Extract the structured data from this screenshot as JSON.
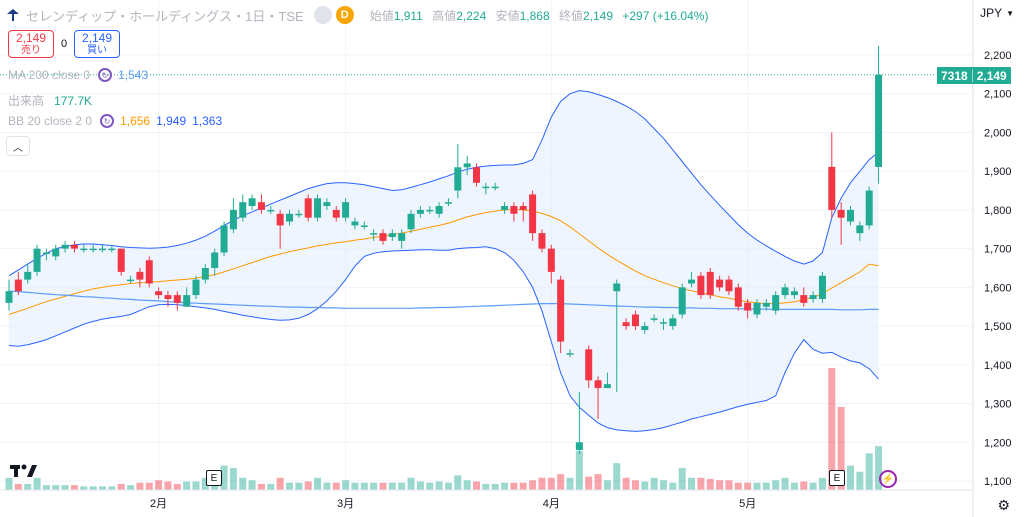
{
  "header": {
    "title": "セレンディップ・ホールディングス・1日・TSE",
    "badge": "D",
    "ohlc": [
      {
        "label": "始値",
        "value": "1,911"
      },
      {
        "label": "高値",
        "value": "2,224"
      },
      {
        "label": "安値",
        "value": "1,868"
      },
      {
        "label": "終値",
        "value": "2,149"
      }
    ],
    "change": "+297 (+16.04%)"
  },
  "trade": {
    "sell_price": "2,149",
    "sell_label": "売り",
    "spread": "0",
    "buy_price": "2,149",
    "buy_label": "買い"
  },
  "indicators": {
    "ma": {
      "label": "MA 200 close 0",
      "value": "1,543"
    },
    "volume": {
      "label": "出来高",
      "value": "177.7K"
    },
    "bb": {
      "label": "BB 20 close 2 0",
      "basis": "1,656",
      "upper": "1,949",
      "lower": "1,363"
    }
  },
  "currency": "JPY",
  "price_tag": {
    "code": "7318",
    "price": "2,149"
  },
  "earnings_marker": "E",
  "colors": {
    "up": "#22ab94",
    "down": "#f23645",
    "ma": "#5b9cf6",
    "bb_basis": "#ff9800",
    "bb_band": "#2962ff",
    "bb_fill": "#e3effd"
  },
  "chart_data": {
    "type": "candlestick",
    "y_axis_ticks": [
      1100,
      1200,
      1300,
      1400,
      1500,
      1600,
      1700,
      1800,
      1900,
      2000,
      2100,
      2200
    ],
    "y_axis_labels": [
      "1,100",
      "1,200",
      "1,300",
      "1,400",
      "1,500",
      "1,600",
      "1,700",
      "1,800",
      "1,900",
      "2,000",
      "2,100",
      "2,200"
    ],
    "ylim": [
      1080,
      2260
    ],
    "x_axis_labels": [
      "2月",
      "3月",
      "4月",
      "5月"
    ],
    "x_axis_label_index": [
      16,
      36,
      58,
      79
    ],
    "candles": [
      [
        1560,
        1590,
        1540,
        1620
      ],
      [
        1620,
        1590,
        1580,
        1640
      ],
      [
        1620,
        1640,
        1610,
        1660
      ],
      [
        1640,
        1700,
        1630,
        1710
      ],
      [
        1690,
        1690,
        1670,
        1700
      ],
      [
        1680,
        1700,
        1670,
        1710
      ],
      [
        1700,
        1710,
        1690,
        1720
      ],
      [
        1710,
        1700,
        1690,
        1720
      ],
      [
        1700,
        1700,
        1690,
        1710
      ],
      [
        1700,
        1700,
        1690,
        1710
      ],
      [
        1700,
        1700,
        1690,
        1710
      ],
      [
        1700,
        1700,
        1690,
        1710
      ],
      [
        1700,
        1640,
        1630,
        1700
      ],
      [
        1620,
        1620,
        1610,
        1630
      ],
      [
        1640,
        1620,
        1600,
        1650
      ],
      [
        1670,
        1610,
        1600,
        1680
      ],
      [
        1590,
        1580,
        1570,
        1600
      ],
      [
        1580,
        1570,
        1550,
        1590
      ],
      [
        1580,
        1560,
        1540,
        1590
      ],
      [
        1550,
        1580,
        1550,
        1600
      ],
      [
        1580,
        1620,
        1570,
        1630
      ],
      [
        1620,
        1650,
        1610,
        1660
      ],
      [
        1650,
        1690,
        1630,
        1700
      ],
      [
        1690,
        1760,
        1680,
        1770
      ],
      [
        1750,
        1800,
        1740,
        1830
      ],
      [
        1780,
        1820,
        1770,
        1840
      ],
      [
        1810,
        1830,
        1800,
        1840
      ],
      [
        1820,
        1800,
        1790,
        1840
      ],
      [
        1800,
        1800,
        1790,
        1810
      ],
      [
        1790,
        1760,
        1700,
        1800
      ],
      [
        1770,
        1790,
        1760,
        1800
      ],
      [
        1790,
        1790,
        1780,
        1800
      ],
      [
        1830,
        1780,
        1770,
        1840
      ],
      [
        1780,
        1830,
        1770,
        1840
      ],
      [
        1810,
        1820,
        1800,
        1830
      ],
      [
        1800,
        1780,
        1770,
        1810
      ],
      [
        1780,
        1820,
        1770,
        1830
      ],
      [
        1760,
        1770,
        1750,
        1780
      ],
      [
        1760,
        1760,
        1750,
        1770
      ],
      [
        1740,
        1740,
        1720,
        1750
      ],
      [
        1740,
        1720,
        1710,
        1750
      ],
      [
        1730,
        1740,
        1720,
        1750
      ],
      [
        1720,
        1740,
        1700,
        1750
      ],
      [
        1750,
        1790,
        1740,
        1800
      ],
      [
        1790,
        1800,
        1780,
        1810
      ],
      [
        1800,
        1800,
        1790,
        1810
      ],
      [
        1790,
        1810,
        1780,
        1820
      ],
      [
        1820,
        1820,
        1810,
        1830
      ],
      [
        1850,
        1910,
        1830,
        1970
      ],
      [
        1910,
        1920,
        1890,
        1940
      ],
      [
        1910,
        1870,
        1860,
        1920
      ],
      [
        1860,
        1860,
        1840,
        1870
      ],
      [
        1860,
        1860,
        1850,
        1870
      ],
      [
        1800,
        1810,
        1790,
        1820
      ],
      [
        1810,
        1790,
        1770,
        1820
      ],
      [
        1810,
        1800,
        1770,
        1820
      ],
      [
        1840,
        1740,
        1720,
        1850
      ],
      [
        1740,
        1700,
        1690,
        1750
      ],
      [
        1700,
        1640,
        1610,
        1710
      ],
      [
        1620,
        1460,
        1430,
        1630
      ],
      [
        1430,
        1430,
        1420,
        1440
      ],
      [
        1180,
        1200,
        1170,
        1330
      ],
      [
        1440,
        1360,
        1340,
        1450
      ],
      [
        1360,
        1340,
        1260,
        1370
      ],
      [
        1340,
        1350,
        1340,
        1380
      ],
      [
        1590,
        1610,
        1330,
        1620
      ],
      [
        1510,
        1500,
        1490,
        1520
      ],
      [
        1530,
        1500,
        1490,
        1540
      ],
      [
        1490,
        1500,
        1480,
        1510
      ],
      [
        1520,
        1520,
        1510,
        1530
      ],
      [
        1510,
        1510,
        1490,
        1520
      ],
      [
        1500,
        1520,
        1490,
        1530
      ],
      [
        1530,
        1600,
        1520,
        1610
      ],
      [
        1610,
        1620,
        1600,
        1640
      ],
      [
        1630,
        1580,
        1570,
        1640
      ],
      [
        1640,
        1580,
        1570,
        1650
      ],
      [
        1620,
        1600,
        1590,
        1630
      ],
      [
        1620,
        1590,
        1580,
        1630
      ],
      [
        1600,
        1550,
        1540,
        1610
      ],
      [
        1560,
        1540,
        1520,
        1570
      ],
      [
        1530,
        1560,
        1520,
        1570
      ],
      [
        1550,
        1560,
        1540,
        1570
      ],
      [
        1540,
        1580,
        1530,
        1590
      ],
      [
        1580,
        1600,
        1570,
        1610
      ],
      [
        1580,
        1590,
        1570,
        1600
      ],
      [
        1580,
        1560,
        1550,
        1600
      ],
      [
        1570,
        1580,
        1560,
        1590
      ],
      [
        1570,
        1630,
        1560,
        1640
      ],
      [
        1911,
        1800,
        1780,
        2000
      ],
      [
        1800,
        1780,
        1710,
        1820
      ],
      [
        1770,
        1800,
        1760,
        1810
      ],
      [
        1740,
        1760,
        1720,
        1770
      ],
      [
        1760,
        1850,
        1750,
        1860
      ],
      [
        1911,
        2149,
        1868,
        2224
      ]
    ],
    "volume_ratio": [
      0.1,
      0.05,
      0.05,
      0.1,
      0.04,
      0.04,
      0.04,
      0.04,
      0.03,
      0.03,
      0.03,
      0.03,
      0.05,
      0.04,
      0.06,
      0.06,
      0.08,
      0.07,
      0.05,
      0.07,
      0.07,
      0.1,
      0.1,
      0.2,
      0.18,
      0.1,
      0.08,
      0.05,
      0.05,
      0.1,
      0.06,
      0.06,
      0.07,
      0.1,
      0.06,
      0.06,
      0.08,
      0.06,
      0.06,
      0.06,
      0.06,
      0.06,
      0.06,
      0.1,
      0.07,
      0.06,
      0.07,
      0.06,
      0.12,
      0.08,
      0.07,
      0.05,
      0.05,
      0.06,
      0.06,
      0.06,
      0.08,
      0.1,
      0.1,
      0.13,
      0.1,
      0.32,
      0.11,
      0.13,
      0.08,
      0.22,
      0.1,
      0.08,
      0.07,
      0.1,
      0.08,
      0.06,
      0.18,
      0.1,
      0.1,
      0.09,
      0.08,
      0.08,
      0.06,
      0.06,
      0.06,
      0.06,
      0.08,
      0.1,
      0.06,
      0.07,
      0.06,
      0.1,
      1.0,
      0.68,
      0.2,
      0.15,
      0.3,
      0.36
    ],
    "ma200": [
      1590,
      1589,
      1587,
      1585,
      1583,
      1581,
      1580,
      1578,
      1576,
      1575,
      1573,
      1572,
      1570,
      1569,
      1567,
      1566,
      1565,
      1563,
      1562,
      1560,
      1559,
      1558,
      1557,
      1556,
      1555,
      1554,
      1553,
      1552,
      1551,
      1550,
      1549,
      1549,
      1548,
      1548,
      1547,
      1547,
      1546,
      1546,
      1546,
      1546,
      1546,
      1546,
      1546,
      1546,
      1547,
      1547,
      1548,
      1548,
      1549,
      1550,
      1551,
      1552,
      1553,
      1554,
      1555,
      1556,
      1557,
      1558,
      1558,
      1558,
      1557,
      1556,
      1555,
      1554,
      1553,
      1552,
      1551,
      1550,
      1549,
      1549,
      1548,
      1548,
      1547,
      1547,
      1546,
      1546,
      1545,
      1545,
      1545,
      1544,
      1544,
      1544,
      1543,
      1543,
      1543,
      1543,
      1543,
      1543,
      1543,
      1542,
      1542,
      1542,
      1543,
      1543
    ],
    "bb_basis": [
      1530,
      1538,
      1546,
      1555,
      1563,
      1570,
      1577,
      1584,
      1590,
      1596,
      1600,
      1604,
      1607,
      1610,
      1612,
      1613,
      1615,
      1617,
      1619,
      1621,
      1624,
      1628,
      1633,
      1640,
      1648,
      1656,
      1664,
      1672,
      1680,
      1686,
      1692,
      1697,
      1702,
      1707,
      1711,
      1715,
      1718,
      1722,
      1725,
      1729,
      1732,
      1736,
      1740,
      1745,
      1750,
      1755,
      1760,
      1766,
      1774,
      1782,
      1788,
      1793,
      1797,
      1800,
      1801,
      1800,
      1797,
      1791,
      1783,
      1772,
      1756,
      1738,
      1720,
      1702,
      1685,
      1670,
      1656,
      1642,
      1630,
      1621,
      1612,
      1604,
      1597,
      1591,
      1586,
      1581,
      1576,
      1572,
      1567,
      1563,
      1560,
      1558,
      1558,
      1560,
      1563,
      1568,
      1574,
      1584,
      1598,
      1612,
      1626,
      1640,
      1660,
      1656
    ],
    "bb_upper": [
      1630,
      1645,
      1660,
      1675,
      1688,
      1700,
      1705,
      1710,
      1712,
      1712,
      1710,
      1708,
      1705,
      1703,
      1702,
      1701,
      1702,
      1704,
      1708,
      1714,
      1722,
      1732,
      1745,
      1760,
      1773,
      1785,
      1795,
      1805,
      1815,
      1825,
      1835,
      1845,
      1855,
      1862,
      1868,
      1870,
      1870,
      1868,
      1865,
      1860,
      1855,
      1850,
      1852,
      1858,
      1865,
      1872,
      1880,
      1888,
      1898,
      1905,
      1910,
      1913,
      1915,
      1916,
      1916,
      1920,
      1930,
      1980,
      2040,
      2080,
      2100,
      2108,
      2105,
      2098,
      2090,
      2080,
      2068,
      2054,
      2035,
      2010,
      1985,
      1955,
      1925,
      1895,
      1865,
      1838,
      1812,
      1787,
      1762,
      1740,
      1722,
      1707,
      1693,
      1680,
      1668,
      1660,
      1668,
      1690,
      1780,
      1830,
      1870,
      1900,
      1930,
      1949
    ],
    "bb_lower": [
      1450,
      1448,
      1452,
      1458,
      1465,
      1475,
      1485,
      1495,
      1505,
      1512,
      1518,
      1522,
      1525,
      1530,
      1540,
      1550,
      1555,
      1556,
      1555,
      1553,
      1550,
      1547,
      1543,
      1538,
      1533,
      1528,
      1524,
      1520,
      1517,
      1515,
      1516,
      1520,
      1530,
      1545,
      1565,
      1590,
      1620,
      1655,
      1680,
      1688,
      1692,
      1694,
      1695,
      1696,
      1697,
      1697,
      1696,
      1696,
      1700,
      1702,
      1703,
      1705,
      1700,
      1690,
      1670,
      1640,
      1600,
      1540,
      1460,
      1380,
      1320,
      1290,
      1270,
      1250,
      1238,
      1232,
      1230,
      1228,
      1230,
      1233,
      1238,
      1245,
      1252,
      1260,
      1266,
      1272,
      1278,
      1285,
      1292,
      1298,
      1303,
      1308,
      1320,
      1380,
      1430,
      1465,
      1440,
      1430,
      1432,
      1420,
      1410,
      1405,
      1390,
      1363
    ]
  }
}
